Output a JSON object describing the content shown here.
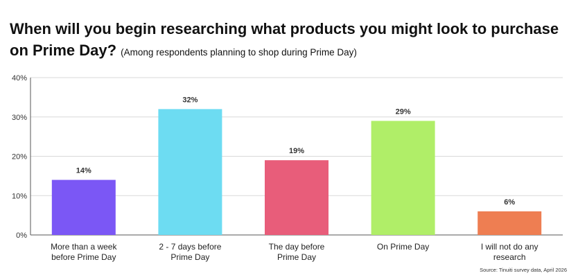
{
  "header": {
    "title": "When will you begin researching what products you might look to purchase on Prime Day?",
    "subtitle": "(Among respondents planning to shop during Prime Day)"
  },
  "source": "Source: Tinuiti survey data, April 2026",
  "chart_data": {
    "type": "bar",
    "title": "When will you begin researching what products you might look to purchase on Prime Day?",
    "subtitle": "(Among respondents planning to shop during Prime Day)",
    "categories": [
      [
        "More than a week",
        "before Prime Day"
      ],
      [
        "2 - 7 days before",
        "Prime Day"
      ],
      [
        "The day before",
        "Prime Day"
      ],
      [
        "On Prime Day"
      ],
      [
        "I will not do any",
        "research"
      ]
    ],
    "values": [
      14,
      32,
      19,
      29,
      6
    ],
    "data_labels": [
      "14%",
      "32%",
      "19%",
      "29%",
      "6%"
    ],
    "colors": [
      "#7b57f5",
      "#6ddcf2",
      "#e85d7a",
      "#b0ee68",
      "#ee7e52"
    ],
    "ylim": [
      0,
      40
    ],
    "yticks": [
      0,
      10,
      20,
      30,
      40
    ],
    "ytick_labels": [
      "0%",
      "10%",
      "20%",
      "30%",
      "40%"
    ],
    "grid": true,
    "xlabel": "",
    "ylabel": ""
  }
}
